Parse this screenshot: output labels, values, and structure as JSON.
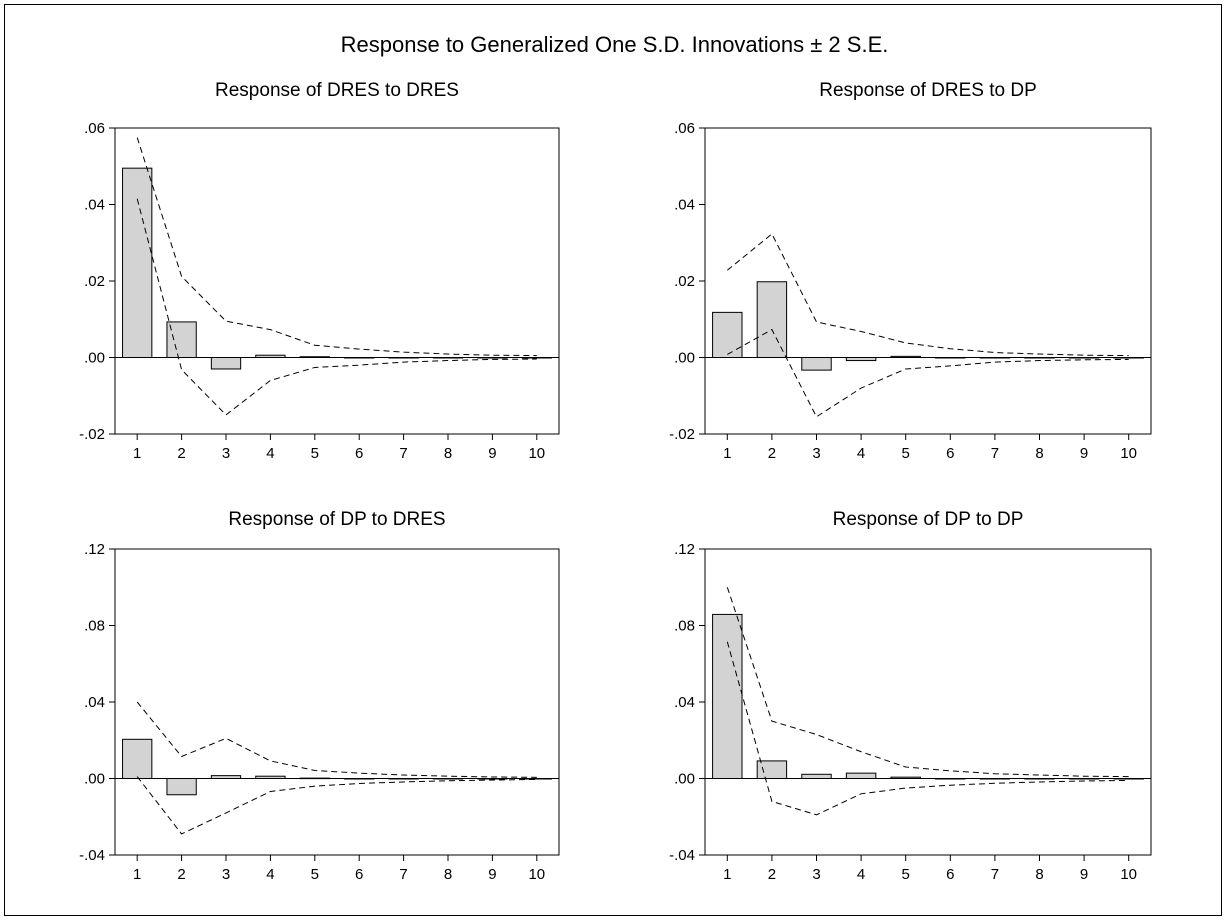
{
  "title": "Response to Generalized One S.D. Innovations ± 2 S.E.",
  "colors": {
    "bar_fill": "#d3d3d3",
    "bar_stroke": "#000000",
    "band": "#000000",
    "axis": "#000000"
  },
  "chart_data": [
    {
      "type": "bar",
      "title": "Response of DRES to DRES",
      "categories": [
        "1",
        "2",
        "3",
        "4",
        "5",
        "6",
        "7",
        "8",
        "9",
        "10"
      ],
      "ytick_labels": [
        ".06",
        ".04",
        ".02",
        ".00",
        "-.02"
      ],
      "yticks": [
        0.06,
        0.04,
        0.02,
        0.0,
        -0.02
      ],
      "ylim": [
        -0.02,
        0.06
      ],
      "series": [
        {
          "name": "Response",
          "type": "bar",
          "values": [
            0.0495,
            0.0093,
            -0.003,
            0.0006,
            0.0002,
            0.0,
            0.0,
            0.0,
            0.0,
            0.0
          ]
        },
        {
          "name": "+2 S.E.",
          "type": "line",
          "style": "dashed",
          "values": [
            0.0575,
            0.0212,
            0.0095,
            0.0073,
            0.0032,
            0.0022,
            0.0014,
            0.0009,
            0.0006,
            0.0005
          ]
        },
        {
          "name": "-2 S.E.",
          "type": "line",
          "style": "dashed",
          "values": [
            0.0415,
            -0.0032,
            -0.015,
            -0.006,
            -0.0026,
            -0.002,
            -0.0012,
            -0.0008,
            -0.0005,
            -0.0004
          ]
        }
      ]
    },
    {
      "type": "bar",
      "title": "Response of DRES to DP",
      "categories": [
        "1",
        "2",
        "3",
        "4",
        "5",
        "6",
        "7",
        "8",
        "9",
        "10"
      ],
      "ytick_labels": [
        ".06",
        ".04",
        ".02",
        ".00",
        "-.02"
      ],
      "yticks": [
        0.06,
        0.04,
        0.02,
        0.0,
        -0.02
      ],
      "ylim": [
        -0.02,
        0.06
      ],
      "series": [
        {
          "name": "Response",
          "type": "bar",
          "values": [
            0.0118,
            0.0198,
            -0.0033,
            -0.0008,
            0.0003,
            0.0,
            0.0,
            0.0,
            0.0,
            0.0
          ]
        },
        {
          "name": "+2 S.E.",
          "type": "line",
          "style": "dashed",
          "values": [
            0.0228,
            0.0323,
            0.0093,
            0.0068,
            0.0038,
            0.0023,
            0.0013,
            0.0009,
            0.0006,
            0.0005
          ]
        },
        {
          "name": "-2 S.E.",
          "type": "line",
          "style": "dashed",
          "values": [
            0.0008,
            0.0073,
            -0.0155,
            -0.008,
            -0.003,
            -0.0022,
            -0.0012,
            -0.0008,
            -0.0006,
            -0.0005
          ]
        }
      ]
    },
    {
      "type": "bar",
      "title": "Response of DP to DRES",
      "categories": [
        "1",
        "2",
        "3",
        "4",
        "5",
        "6",
        "7",
        "8",
        "9",
        "10"
      ],
      "ytick_labels": [
        ".12",
        ".08",
        ".04",
        ".00",
        "-.04"
      ],
      "yticks": [
        0.12,
        0.08,
        0.04,
        0.0,
        -0.04
      ],
      "ylim": [
        -0.04,
        0.12
      ],
      "series": [
        {
          "name": "Response",
          "type": "bar",
          "values": [
            0.0205,
            -0.0085,
            0.0015,
            0.0012,
            0.0002,
            0.0,
            0.0,
            0.0,
            0.0,
            0.0
          ]
        },
        {
          "name": "+2 S.E.",
          "type": "line",
          "style": "dashed",
          "values": [
            0.04,
            0.0115,
            0.021,
            0.0092,
            0.0042,
            0.0028,
            0.0018,
            0.0012,
            0.0008,
            0.0006
          ]
        },
        {
          "name": "-2 S.E.",
          "type": "line",
          "style": "dashed",
          "values": [
            0.001,
            -0.029,
            -0.018,
            -0.0068,
            -0.004,
            -0.0026,
            -0.0018,
            -0.0012,
            -0.0008,
            -0.0005
          ]
        }
      ]
    },
    {
      "type": "bar",
      "title": "Response of DP to DP",
      "categories": [
        "1",
        "2",
        "3",
        "4",
        "5",
        "6",
        "7",
        "8",
        "9",
        "10"
      ],
      "ytick_labels": [
        ".12",
        ".08",
        ".04",
        ".00",
        "-.04"
      ],
      "yticks": [
        0.12,
        0.08,
        0.04,
        0.0,
        -0.04
      ],
      "ylim": [
        -0.04,
        0.12
      ],
      "series": [
        {
          "name": "Response",
          "type": "bar",
          "values": [
            0.0858,
            0.0092,
            0.0022,
            0.0028,
            0.0007,
            0.0,
            0.0,
            0.0,
            0.0,
            0.0
          ]
        },
        {
          "name": "+2 S.E.",
          "type": "line",
          "style": "dashed",
          "values": [
            0.1,
            0.03,
            0.023,
            0.014,
            0.006,
            0.004,
            0.0025,
            0.0018,
            0.0012,
            0.001
          ]
        },
        {
          "name": "-2 S.E.",
          "type": "line",
          "style": "dashed",
          "values": [
            0.0715,
            -0.012,
            -0.019,
            -0.008,
            -0.005,
            -0.0035,
            -0.0025,
            -0.0018,
            -0.0013,
            -0.001
          ]
        }
      ]
    }
  ]
}
